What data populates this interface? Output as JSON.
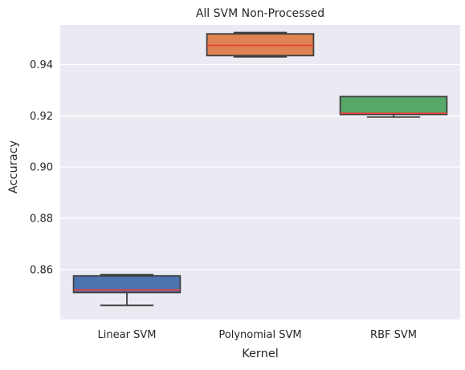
{
  "chart_data": {
    "type": "box",
    "title": "All SVM Non-Processed",
    "xlabel": "Kernel",
    "ylabel": "Accuracy",
    "categories": [
      "Linear SVM",
      "Polynomial SVM",
      "RBF SVM"
    ],
    "ylim": [
      0.8405,
      0.9555
    ],
    "yticks": [
      0.86,
      0.88,
      0.9,
      0.92,
      0.94
    ],
    "ytick_labels": [
      "0.86",
      "0.88",
      "0.90",
      "0.92",
      "0.94"
    ],
    "grid": true,
    "boxes": [
      {
        "category": "Linear SVM",
        "whisker_low": 0.846,
        "q1": 0.851,
        "median": 0.852,
        "q3": 0.8575,
        "whisker_high": 0.858,
        "color": "#4c72b0"
      },
      {
        "category": "Polynomial SVM",
        "whisker_low": 0.943,
        "q1": 0.9435,
        "median": 0.9475,
        "q3": 0.952,
        "whisker_high": 0.9525,
        "color": "#dd8452"
      },
      {
        "category": "RBF SVM",
        "whisker_low": 0.9195,
        "q1": 0.9205,
        "median": 0.921,
        "q3": 0.9275,
        "whisker_high": 0.9275,
        "color": "#55a868"
      }
    ],
    "colors": {
      "background": "#eaeaf2",
      "grid": "#ffffff",
      "median": "#e8403a",
      "edge": "#3f3f3f"
    }
  }
}
